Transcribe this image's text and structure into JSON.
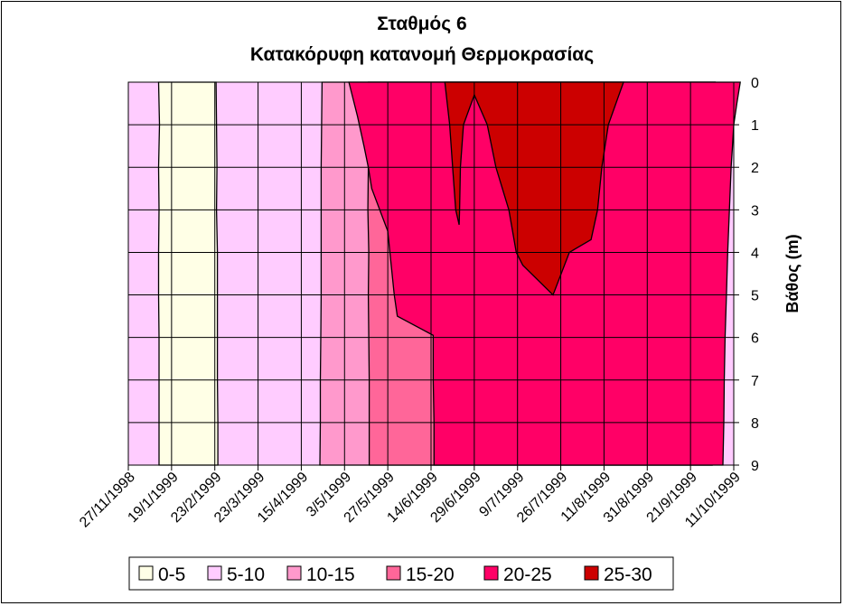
{
  "chart_data": {
    "type": "area",
    "title": "Σταθμός 6",
    "subtitle": "Κατακόρυφη κατανομή Θερμοκρασίας",
    "ylabel": "Βάθος (m)",
    "xlabel": "",
    "ylim": [
      0,
      9
    ],
    "y_reversed": true,
    "y_ticks": [
      "0",
      "1",
      "2",
      "3",
      "4",
      "5",
      "6",
      "7",
      "8",
      "9"
    ],
    "x_ticks": [
      "27/11/1998",
      "19/1/1999",
      "23/2/1999",
      "23/3/1999",
      "15/4/1999",
      "3/5/1999",
      "27/5/1999",
      "14/6/1999",
      "29/6/1999",
      "9/7/1999",
      "26/7/1999",
      "11/8/1999",
      "31/8/1999",
      "21/9/1999",
      "11/10/1999"
    ],
    "grid": true,
    "legend_position": "bottom",
    "series": [
      {
        "name": "0-5",
        "color": "#FFFFE6"
      },
      {
        "name": "5-10",
        "color": "#FFCCFF"
      },
      {
        "name": "10-15",
        "color": "#FF99CC"
      },
      {
        "name": "15-20",
        "color": "#FF6699"
      },
      {
        "name": "20-25",
        "color": "#FF0066"
      },
      {
        "name": "25-30",
        "color": "#CC0000"
      }
    ],
    "isotherm_boundaries": [
      {
        "name": "5",
        "depths": [
          0,
          1,
          2,
          3,
          4,
          5,
          6,
          7,
          8,
          9
        ],
        "x_units": [
          0.7,
          0.72,
          0.7,
          0.71,
          0.7,
          0.7,
          0.71,
          0.71,
          0.71,
          0.71
        ]
      },
      {
        "name": "10-left",
        "depths": [
          0,
          1,
          2,
          3,
          4,
          5,
          6,
          7,
          8,
          9
        ],
        "x_units": [
          2.03,
          2.04,
          2.05,
          2.04,
          2.06,
          2.06,
          2.06,
          2.06,
          2.07,
          2.07
        ]
      },
      {
        "name": "10-right",
        "depths": [
          0,
          1,
          2,
          3,
          4,
          5,
          6,
          7,
          8,
          9
        ],
        "x_units": [
          4.48,
          4.47,
          4.46,
          4.46,
          4.46,
          4.46,
          4.45,
          4.44,
          4.44,
          4.43
        ]
      },
      {
        "name": "15-left",
        "depths": [
          0,
          1,
          2,
          3,
          4,
          5,
          6,
          7,
          8,
          9
        ],
        "x_units": [
          5.55,
          5.55,
          5.55,
          5.54,
          5.56,
          5.55,
          5.56,
          5.57,
          5.57,
          5.57
        ]
      },
      {
        "name": "15-right",
        "depths": [
          0,
          1,
          2,
          3,
          4,
          5,
          6,
          7,
          8,
          9
        ],
        "x_units": [
          13.57,
          13.54,
          13.53,
          13.52,
          13.52,
          13.52,
          13.52,
          13.52,
          13.5,
          13.5
        ]
      },
      {
        "name": "20-left",
        "depths": [
          0,
          0.8,
          1.5,
          2.0,
          2.5,
          3.5,
          5.0,
          5.5,
          5.95,
          7.0,
          8.0,
          9.0
        ],
        "x_units": [
          5.1,
          5.3,
          5.45,
          5.55,
          5.63,
          6.0,
          6.15,
          6.22,
          7.05,
          7.05,
          7.07,
          7.07
        ]
      },
      {
        "name": "20-right",
        "depths": [
          0,
          0.5,
          1.0,
          1.5,
          2.0,
          3.0,
          4.0,
          5.0,
          6.0,
          7.0,
          8.0,
          9.0
        ],
        "x_units": [
          14.15,
          14.07,
          14.0,
          13.97,
          13.94,
          13.9,
          13.86,
          13.83,
          13.8,
          13.78,
          13.77,
          13.75
        ]
      },
      {
        "name": "25-dome",
        "depths": [
          0,
          1,
          2,
          3,
          3.35,
          3,
          2,
          1,
          0.3,
          1,
          2,
          3,
          4,
          4.3,
          5,
          4,
          3.7,
          3,
          2,
          1,
          0
        ],
        "x_units": [
          7.32,
          7.43,
          7.5,
          7.57,
          7.65,
          7.66,
          7.68,
          7.75,
          8.0,
          8.3,
          8.5,
          8.8,
          8.97,
          9.12,
          9.82,
          10.2,
          10.7,
          10.85,
          10.95,
          11.1,
          11.45
        ]
      }
    ]
  }
}
